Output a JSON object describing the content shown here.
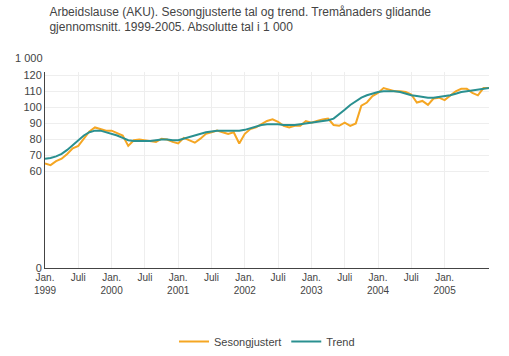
{
  "chart_data": {
    "type": "line",
    "title": "Arbeidslause (AKU). Sesongjusterte tal og trend. Tremånaders glidande\ngjennomsnitt. 1999-2005. Absolutte tal i 1 000",
    "ylabel": "1 000",
    "categories": [
      "Jan.\n1999",
      null,
      null,
      null,
      null,
      null,
      "Juli",
      null,
      null,
      null,
      null,
      null,
      "Jan.\n2000",
      null,
      null,
      null,
      null,
      null,
      "Juli",
      null,
      null,
      null,
      null,
      null,
      "Jan.\n2001",
      null,
      null,
      null,
      null,
      null,
      "Juli",
      null,
      null,
      null,
      null,
      null,
      "Jan.\n2002",
      null,
      null,
      null,
      null,
      null,
      "Juli",
      null,
      null,
      null,
      null,
      null,
      "Jan.\n2003",
      null,
      null,
      null,
      null,
      null,
      "Juli",
      null,
      null,
      null,
      null,
      null,
      "Jan.\n2004",
      null,
      null,
      null,
      null,
      null,
      "Juli",
      null,
      null,
      null,
      null,
      null,
      "Jan.\n2005",
      null,
      null,
      null,
      null,
      null,
      null,
      null,
      null
    ],
    "series": [
      {
        "name": "Sesongjustert",
        "color": "#F5A623",
        "values": [
          65.0,
          64.0,
          66.5,
          68.0,
          71.0,
          74.5,
          76.0,
          80.5,
          85.0,
          87.5,
          86.5,
          85.5,
          85.5,
          84.0,
          82.5,
          76.0,
          79.5,
          80.0,
          79.5,
          79.0,
          78.5,
          80.5,
          80.0,
          78.5,
          77.5,
          81.0,
          79.5,
          78.0,
          80.5,
          83.5,
          84.5,
          85.5,
          84.5,
          83.5,
          84.5,
          77.5,
          83.5,
          86.5,
          87.5,
          89.5,
          91.5,
          92.5,
          91.0,
          88.5,
          87.5,
          88.5,
          88.5,
          91.5,
          90.5,
          91.5,
          92.5,
          93.0,
          89.0,
          88.5,
          90.5,
          88.5,
          90.0,
          101.0,
          103.0,
          107.0,
          109.0,
          112.0,
          111.0,
          110.0,
          110.0,
          109.5,
          108.0,
          103.0,
          104.0,
          101.5,
          105.5,
          106.0,
          104.5,
          107.5,
          110.0,
          111.5,
          111.5,
          109.0,
          107.5,
          112.0,
          112.0
        ]
      },
      {
        "name": "Trend",
        "color": "#2A9090",
        "values": [
          68.0,
          68.5,
          69.5,
          71.0,
          73.5,
          76.5,
          79.5,
          82.5,
          84.5,
          85.5,
          85.5,
          84.5,
          83.5,
          82.5,
          81.0,
          79.5,
          79.0,
          79.0,
          79.0,
          79.0,
          79.5,
          80.0,
          80.0,
          79.5,
          79.5,
          80.5,
          81.5,
          82.5,
          83.5,
          84.5,
          85.0,
          85.5,
          85.5,
          85.5,
          85.5,
          85.5,
          86.0,
          87.0,
          88.0,
          89.0,
          89.5,
          89.5,
          89.5,
          89.0,
          89.0,
          89.0,
          89.5,
          90.0,
          90.5,
          91.0,
          91.5,
          92.0,
          93.0,
          95.5,
          98.5,
          101.5,
          104.0,
          106.0,
          107.5,
          108.5,
          109.5,
          110.0,
          110.0,
          110.0,
          109.5,
          108.5,
          107.5,
          107.0,
          106.5,
          106.0,
          106.0,
          106.5,
          107.0,
          107.5,
          108.5,
          109.5,
          110.0,
          110.5,
          111.0,
          111.5,
          112.0
        ]
      }
    ],
    "ylim": [
      0,
      122
    ],
    "yticks": [
      0,
      60,
      70,
      80,
      90,
      100,
      110,
      120
    ],
    "grid": true,
    "legend": "bottom"
  }
}
